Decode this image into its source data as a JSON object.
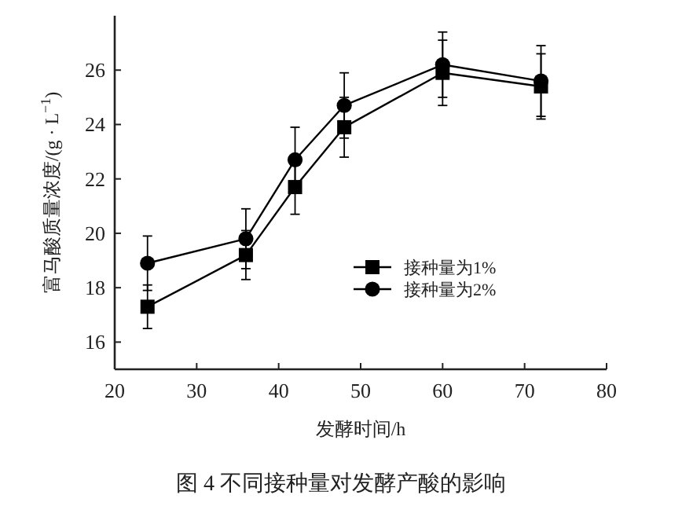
{
  "chart_data": {
    "type": "line",
    "title": "图 4   不同接种量对发酵产酸的影响",
    "xlabel": "发酵时间/h",
    "ylabel": "富马酸质量浓度/(g · L$^{−1}$)",
    "x": [
      24,
      36,
      42,
      48,
      60,
      72
    ],
    "xlim": [
      20,
      80
    ],
    "xticks": [
      20,
      30,
      40,
      50,
      60,
      70,
      80
    ],
    "ylim": [
      15,
      28
    ],
    "yticks": [
      16,
      18,
      20,
      22,
      24,
      26
    ],
    "grid": false,
    "legend": "right",
    "line_style": "solid",
    "series": [
      {
        "name": "接种量为1%",
        "color": "#000000",
        "marker": "square",
        "values": [
          17.3,
          19.2,
          21.7,
          23.9,
          25.9,
          25.4
        ],
        "errors": [
          0.8,
          0.9,
          1.0,
          1.1,
          1.2,
          1.2
        ]
      },
      {
        "name": "接种量为2%",
        "color": "#000000",
        "marker": "circle",
        "values": [
          18.9,
          19.8,
          22.7,
          24.7,
          26.2,
          25.6
        ],
        "errors": [
          1.0,
          1.1,
          1.2,
          1.2,
          1.2,
          1.3
        ]
      }
    ]
  }
}
